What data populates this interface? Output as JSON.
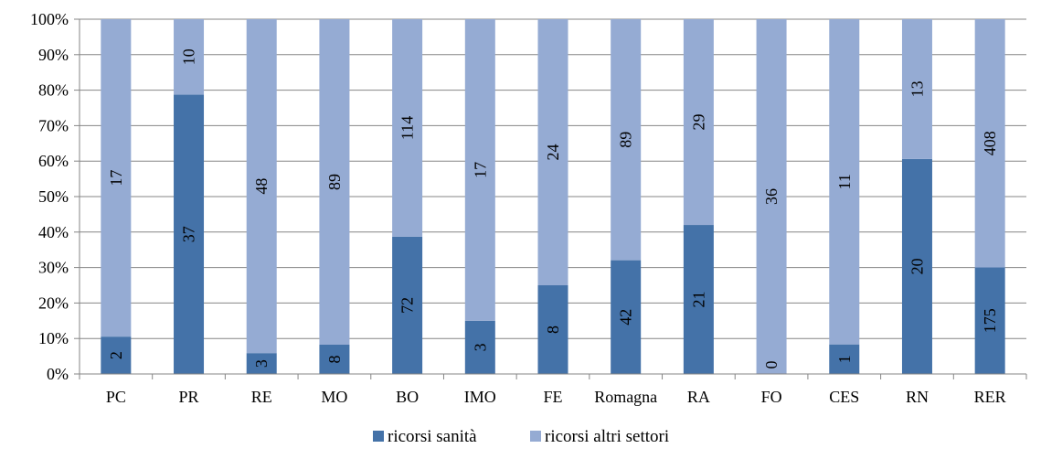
{
  "chart_data": {
    "type": "bar",
    "stacked": "percent",
    "categories": [
      "PC",
      "PR",
      "RE",
      "MO",
      "BO",
      "IMO",
      "FE",
      "Romagna",
      "RA",
      "FO",
      "CES",
      "RN",
      "RER"
    ],
    "series": [
      {
        "name": "ricorsi sanità",
        "values": [
          2,
          37,
          3,
          8,
          72,
          3,
          8,
          42,
          21,
          0,
          1,
          20,
          175
        ]
      },
      {
        "name": "ricorsi altri settori",
        "values": [
          17,
          10,
          48,
          89,
          114,
          17,
          24,
          89,
          29,
          36,
          11,
          13,
          408
        ]
      }
    ],
    "y_ticks": [
      "0%",
      "10%",
      "20%",
      "30%",
      "40%",
      "50%",
      "60%",
      "70%",
      "80%",
      "90%",
      "100%"
    ],
    "ylim": [
      0,
      100
    ],
    "title": "",
    "xlabel": "",
    "ylabel": "",
    "grid": true,
    "legend_position": "bottom",
    "colors": {
      "ricorsi sanità": "#4472a8",
      "ricorsi altri settori": "#95abd3",
      "axis": "#868686",
      "grid": "#868686"
    }
  }
}
